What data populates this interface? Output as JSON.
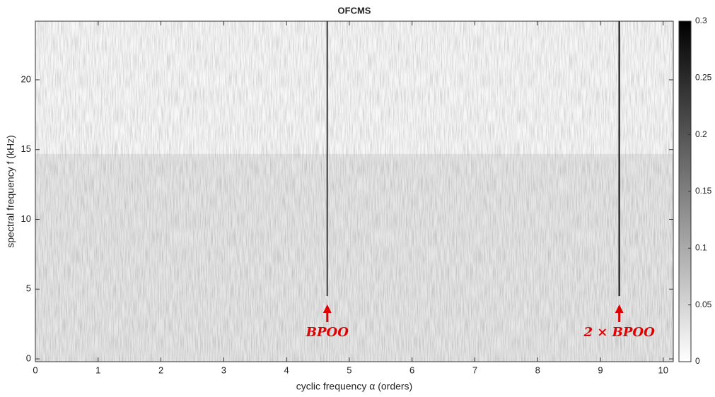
{
  "chart_data": {
    "type": "heatmap",
    "title": "OFCMS",
    "x_label": "cyclic frequency α (orders)",
    "y_label": "spectral frequency f (kHz)",
    "xlim": [
      0,
      10.16
    ],
    "xticks": [
      0,
      1,
      2,
      3,
      4,
      5,
      6,
      7,
      8,
      9,
      10
    ],
    "ylim": [
      -0.2,
      24.2
    ],
    "yticks": [
      0,
      5,
      10,
      15,
      20
    ],
    "colormap": "gray",
    "clim": [
      0,
      0.3
    ],
    "cticks": [
      0,
      0.05,
      0.1,
      0.15,
      0.2,
      0.25,
      0.3
    ],
    "bands": [
      {
        "f_range": [
          -0.2,
          14.7
        ],
        "value": 0.03
      },
      {
        "f_range": [
          14.7,
          24.2
        ],
        "value": 0.01
      }
    ],
    "lines": [
      {
        "alpha": 4.65,
        "f_range": [
          4.5,
          24.2
        ],
        "value": 0.2
      },
      {
        "alpha": 9.3,
        "f_range": [
          4.5,
          24.2
        ],
        "value": 0.25
      }
    ],
    "annotations": [
      {
        "text": "BPOO",
        "x": 4.65,
        "color": "#e00000"
      },
      {
        "text": "2 × BPOO",
        "x": 9.3,
        "color": "#e00000"
      }
    ]
  }
}
